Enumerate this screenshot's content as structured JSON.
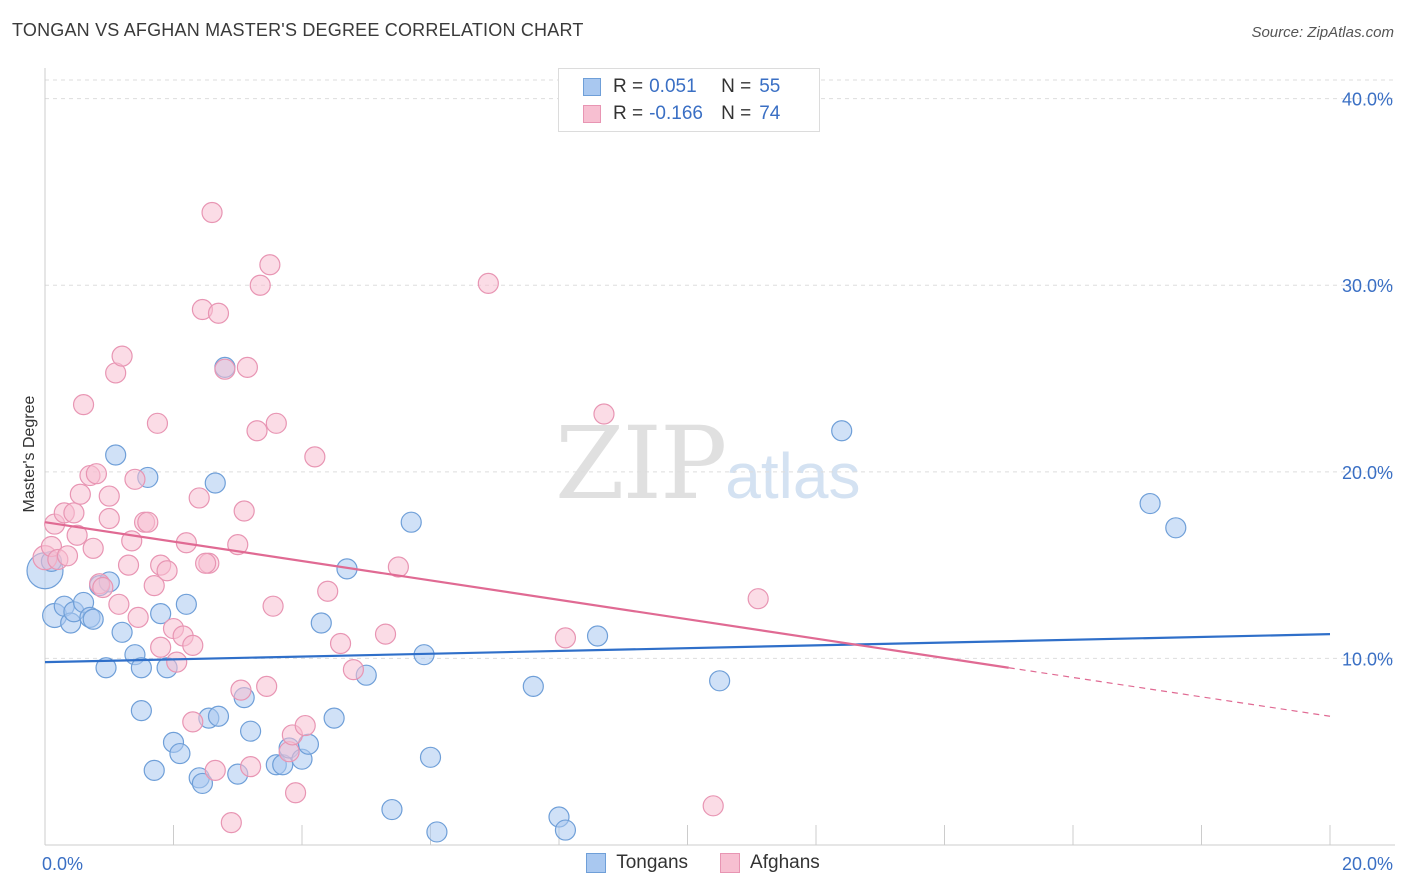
{
  "title": "TONGAN VS AFGHAN MASTER'S DEGREE CORRELATION CHART",
  "source": "Source: ZipAtlas.com",
  "watermark": {
    "zip": "ZIP",
    "atlas": "atlas"
  },
  "stats": [
    {
      "r_label": "R =",
      "r_value": "0.051",
      "n_label": "N =",
      "n_value": "55",
      "color": "#a9c8f0",
      "border": "#6f9fd8"
    },
    {
      "r_label": "R =",
      "r_value": "-0.166",
      "n_label": "N =",
      "n_value": "74",
      "color": "#f7bfd1",
      "border": "#e895b3"
    }
  ],
  "legend": [
    {
      "label": "Tongans",
      "color": "#a9c8f0",
      "border": "#6f9fd8"
    },
    {
      "label": "Afghans",
      "color": "#f7bfd1",
      "border": "#e895b3"
    }
  ],
  "chart_data": {
    "type": "scatter",
    "title": "TONGAN VS AFGHAN MASTER'S DEGREE CORRELATION CHART",
    "xlabel": "",
    "ylabel": "Master's Degree",
    "xlim": [
      0,
      20
    ],
    "ylim": [
      0,
      41
    ],
    "x_tick_labels": [
      "0.0%",
      "20.0%"
    ],
    "y_ticks": [
      10,
      20,
      30,
      40
    ],
    "y_tick_labels": [
      "10.0%",
      "20.0%",
      "30.0%",
      "40.0%"
    ],
    "grid": "horizontal dashed",
    "legend_position": "bottom-center",
    "series": [
      {
        "name": "Tongans",
        "color": "#a9c8f0",
        "stroke": "#6f9fd8",
        "line_color": "#2f6fc9",
        "trend": {
          "x0": 0,
          "y0": 9.8,
          "x1": 20,
          "y1": 11.3
        },
        "points": [
          [
            0.0,
            14.7,
            18
          ],
          [
            0.1,
            15.2,
            10
          ],
          [
            0.15,
            12.3,
            12
          ],
          [
            0.3,
            12.8,
            10
          ],
          [
            0.4,
            11.9,
            10
          ],
          [
            0.45,
            12.5,
            10
          ],
          [
            0.6,
            13.0,
            10
          ],
          [
            0.7,
            12.2,
            10
          ],
          [
            0.75,
            12.1,
            10
          ],
          [
            0.85,
            13.9,
            10
          ],
          [
            1.0,
            14.1,
            10
          ],
          [
            0.95,
            9.5,
            10
          ],
          [
            1.2,
            11.4,
            10
          ],
          [
            1.1,
            20.9,
            10
          ],
          [
            1.4,
            10.2,
            10
          ],
          [
            1.5,
            9.5,
            10
          ],
          [
            1.6,
            19.7,
            10
          ],
          [
            1.8,
            12.4,
            10
          ],
          [
            1.9,
            9.5,
            10
          ],
          [
            1.5,
            7.2,
            10
          ],
          [
            1.7,
            4.0,
            10
          ],
          [
            2.0,
            5.5,
            10
          ],
          [
            2.1,
            4.9,
            10
          ],
          [
            2.2,
            12.9,
            10
          ],
          [
            2.4,
            3.6,
            10
          ],
          [
            2.45,
            3.3,
            10
          ],
          [
            2.55,
            6.8,
            10
          ],
          [
            2.65,
            19.4,
            10
          ],
          [
            2.7,
            6.9,
            10
          ],
          [
            2.8,
            25.6,
            10
          ],
          [
            3.0,
            3.8,
            10
          ],
          [
            3.1,
            7.9,
            10
          ],
          [
            3.2,
            6.1,
            10
          ],
          [
            3.6,
            4.3,
            10
          ],
          [
            3.7,
            4.3,
            10
          ],
          [
            3.8,
            5.2,
            10
          ],
          [
            4.0,
            4.6,
            10
          ],
          [
            4.1,
            5.4,
            10
          ],
          [
            4.3,
            11.9,
            10
          ],
          [
            4.5,
            6.8,
            10
          ],
          [
            4.7,
            14.8,
            10
          ],
          [
            5.0,
            9.1,
            10
          ],
          [
            5.4,
            1.9,
            10
          ],
          [
            5.7,
            17.3,
            10
          ],
          [
            5.9,
            10.2,
            10
          ],
          [
            6.0,
            4.7,
            10
          ],
          [
            6.1,
            0.7,
            10
          ],
          [
            7.6,
            8.5,
            10
          ],
          [
            8.0,
            1.5,
            10
          ],
          [
            8.1,
            0.8,
            10
          ],
          [
            8.6,
            11.2,
            10
          ],
          [
            10.5,
            8.8,
            10
          ],
          [
            12.4,
            22.2,
            10
          ],
          [
            17.2,
            18.3,
            10
          ],
          [
            17.6,
            17.0,
            10
          ]
        ]
      },
      {
        "name": "Afghans",
        "color": "#f7bfd1",
        "stroke": "#e895b3",
        "line_color": "#e06a93",
        "trend": {
          "x0": 0,
          "y0": 17.3,
          "x1": 15.0,
          "y1": 9.5
        },
        "trend_dashed": {
          "x0": 15.0,
          "y0": 9.5,
          "x1": 20,
          "y1": 6.9
        },
        "points": [
          [
            0.0,
            15.4,
            12
          ],
          [
            0.1,
            16.0,
            10
          ],
          [
            0.15,
            17.2,
            10
          ],
          [
            0.2,
            15.3,
            10
          ],
          [
            0.3,
            17.8,
            10
          ],
          [
            0.35,
            15.5,
            10
          ],
          [
            0.45,
            17.8,
            10
          ],
          [
            0.5,
            16.6,
            10
          ],
          [
            0.55,
            18.8,
            10
          ],
          [
            0.6,
            23.6,
            10
          ],
          [
            0.7,
            19.8,
            10
          ],
          [
            0.75,
            15.9,
            10
          ],
          [
            0.8,
            19.9,
            10
          ],
          [
            0.85,
            14.0,
            10
          ],
          [
            0.9,
            13.8,
            10
          ],
          [
            1.0,
            18.7,
            10
          ],
          [
            1.0,
            17.5,
            10
          ],
          [
            1.1,
            25.3,
            10
          ],
          [
            1.15,
            12.9,
            10
          ],
          [
            1.2,
            26.2,
            10
          ],
          [
            1.3,
            15.0,
            10
          ],
          [
            1.35,
            16.3,
            10
          ],
          [
            1.4,
            19.6,
            10
          ],
          [
            1.45,
            12.2,
            10
          ],
          [
            1.55,
            17.3,
            10
          ],
          [
            1.6,
            17.3,
            10
          ],
          [
            1.7,
            13.9,
            10
          ],
          [
            1.75,
            22.6,
            10
          ],
          [
            1.8,
            15.0,
            10
          ],
          [
            1.8,
            10.6,
            10
          ],
          [
            1.9,
            14.7,
            10
          ],
          [
            2.0,
            11.6,
            10
          ],
          [
            2.05,
            9.8,
            10
          ],
          [
            2.15,
            11.2,
            10
          ],
          [
            2.2,
            16.2,
            10
          ],
          [
            2.3,
            10.7,
            10
          ],
          [
            2.3,
            6.6,
            10
          ],
          [
            2.4,
            18.6,
            10
          ],
          [
            2.45,
            28.7,
            10
          ],
          [
            2.55,
            15.1,
            10
          ],
          [
            2.5,
            15.1,
            10
          ],
          [
            2.6,
            33.9,
            10
          ],
          [
            2.65,
            4.0,
            10
          ],
          [
            2.7,
            28.5,
            10
          ],
          [
            2.8,
            25.5,
            10
          ],
          [
            2.9,
            1.2,
            10
          ],
          [
            3.0,
            16.1,
            10
          ],
          [
            3.05,
            8.3,
            10
          ],
          [
            3.1,
            17.9,
            10
          ],
          [
            3.15,
            25.6,
            10
          ],
          [
            3.2,
            4.2,
            10
          ],
          [
            3.3,
            22.2,
            10
          ],
          [
            3.35,
            30.0,
            10
          ],
          [
            3.45,
            8.5,
            10
          ],
          [
            3.5,
            31.1,
            10
          ],
          [
            3.55,
            12.8,
            10
          ],
          [
            3.6,
            22.6,
            10
          ],
          [
            3.8,
            5.0,
            10
          ],
          [
            3.85,
            5.9,
            10
          ],
          [
            3.9,
            2.8,
            10
          ],
          [
            4.05,
            6.4,
            10
          ],
          [
            4.2,
            20.8,
            10
          ],
          [
            4.4,
            13.6,
            10
          ],
          [
            4.6,
            10.8,
            10
          ],
          [
            4.8,
            9.4,
            10
          ],
          [
            5.3,
            11.3,
            10
          ],
          [
            5.5,
            14.9,
            10
          ],
          [
            6.9,
            30.1,
            10
          ],
          [
            8.1,
            11.1,
            10
          ],
          [
            8.7,
            23.1,
            10
          ],
          [
            10.4,
            2.1,
            10
          ],
          [
            11.1,
            13.2,
            10
          ],
          [
            3.0,
            10.0,
            0
          ],
          [
            2.2,
            10.4,
            0
          ]
        ]
      }
    ]
  }
}
